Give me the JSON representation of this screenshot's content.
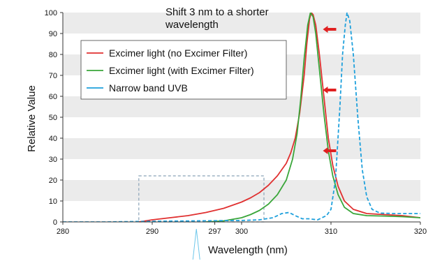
{
  "chart_data": {
    "type": "line",
    "xlabel": "Wavelength (nm)",
    "ylabel": "Relative Value",
    "xlim": [
      280,
      320
    ],
    "ylim": [
      0,
      100
    ],
    "x_ticks": [
      280,
      290,
      297,
      300,
      310,
      320
    ],
    "y_ticks": [
      0,
      10,
      20,
      30,
      40,
      50,
      60,
      70,
      80,
      90,
      100
    ],
    "grid": "horizontal bands",
    "legend_position": "upper-left",
    "annotation": {
      "line1": "Shift 3 nm to a shorter",
      "line2": "wavelength"
    },
    "highlight_region": {
      "x": [
        288.5,
        302.5
      ],
      "y": [
        0,
        22
      ]
    },
    "series": [
      {
        "name": "Excimer light (no Excimer Filter)",
        "color": "#e03030",
        "style": "solid",
        "points": [
          [
            288.5,
            0
          ],
          [
            290,
            1
          ],
          [
            292,
            2
          ],
          [
            294,
            3
          ],
          [
            296,
            4.5
          ],
          [
            298,
            6.5
          ],
          [
            300,
            9.5
          ],
          [
            301,
            11.5
          ],
          [
            302,
            14
          ],
          [
            303,
            17.5
          ],
          [
            304,
            22
          ],
          [
            305,
            28
          ],
          [
            305.5,
            33
          ],
          [
            306,
            40
          ],
          [
            306.5,
            52
          ],
          [
            307,
            70
          ],
          [
            307.3,
            85
          ],
          [
            307.6,
            97
          ],
          [
            307.8,
            100
          ],
          [
            308,
            99
          ],
          [
            308.3,
            94
          ],
          [
            308.7,
            80
          ],
          [
            309.2,
            60
          ],
          [
            309.7,
            40
          ],
          [
            310.2,
            27
          ],
          [
            310.8,
            17
          ],
          [
            311.5,
            10
          ],
          [
            312.5,
            6
          ],
          [
            314,
            4
          ],
          [
            316,
            3.5
          ],
          [
            318,
            3
          ],
          [
            320,
            2
          ]
        ]
      },
      {
        "name": "Excimer light (with Excimer Filter)",
        "color": "#3aa63a",
        "style": "solid",
        "points": [
          [
            296,
            0
          ],
          [
            298,
            0.5
          ],
          [
            300,
            2
          ],
          [
            301,
            3.5
          ],
          [
            302,
            5.5
          ],
          [
            303,
            8.5
          ],
          [
            304,
            13
          ],
          [
            305,
            20
          ],
          [
            305.7,
            30
          ],
          [
            306.2,
            42
          ],
          [
            306.6,
            58
          ],
          [
            307,
            78
          ],
          [
            307.4,
            94
          ],
          [
            307.7,
            100
          ],
          [
            308,
            98
          ],
          [
            308.3,
            90
          ],
          [
            308.7,
            73
          ],
          [
            309.2,
            52
          ],
          [
            309.7,
            34
          ],
          [
            310.2,
            22
          ],
          [
            310.8,
            13
          ],
          [
            311.5,
            7
          ],
          [
            312.5,
            4
          ],
          [
            314,
            3
          ],
          [
            316,
            2.8
          ],
          [
            318,
            2.5
          ],
          [
            320,
            2
          ]
        ]
      },
      {
        "name": "Narrow band UVB",
        "color": "#1ea0dc",
        "style": "dashed",
        "points": [
          [
            280,
            0
          ],
          [
            285,
            0
          ],
          [
            290,
            0.3
          ],
          [
            295,
            0.5
          ],
          [
            300,
            0.7
          ],
          [
            302,
            1
          ],
          [
            303.5,
            2
          ],
          [
            304.5,
            4
          ],
          [
            305.3,
            4.5
          ],
          [
            306,
            3
          ],
          [
            306.8,
            1.5
          ],
          [
            307.5,
            1.5
          ],
          [
            308.5,
            1
          ],
          [
            309.5,
            3
          ],
          [
            310,
            6
          ],
          [
            310.5,
            20
          ],
          [
            311,
            55
          ],
          [
            311.3,
            80
          ],
          [
            311.6,
            94
          ],
          [
            311.8,
            100
          ],
          [
            312.1,
            96
          ],
          [
            312.5,
            80
          ],
          [
            313,
            50
          ],
          [
            313.5,
            25
          ],
          [
            314,
            12
          ],
          [
            314.6,
            6
          ],
          [
            315.5,
            4.2
          ],
          [
            317,
            4
          ],
          [
            320,
            4
          ]
        ]
      }
    ]
  }
}
